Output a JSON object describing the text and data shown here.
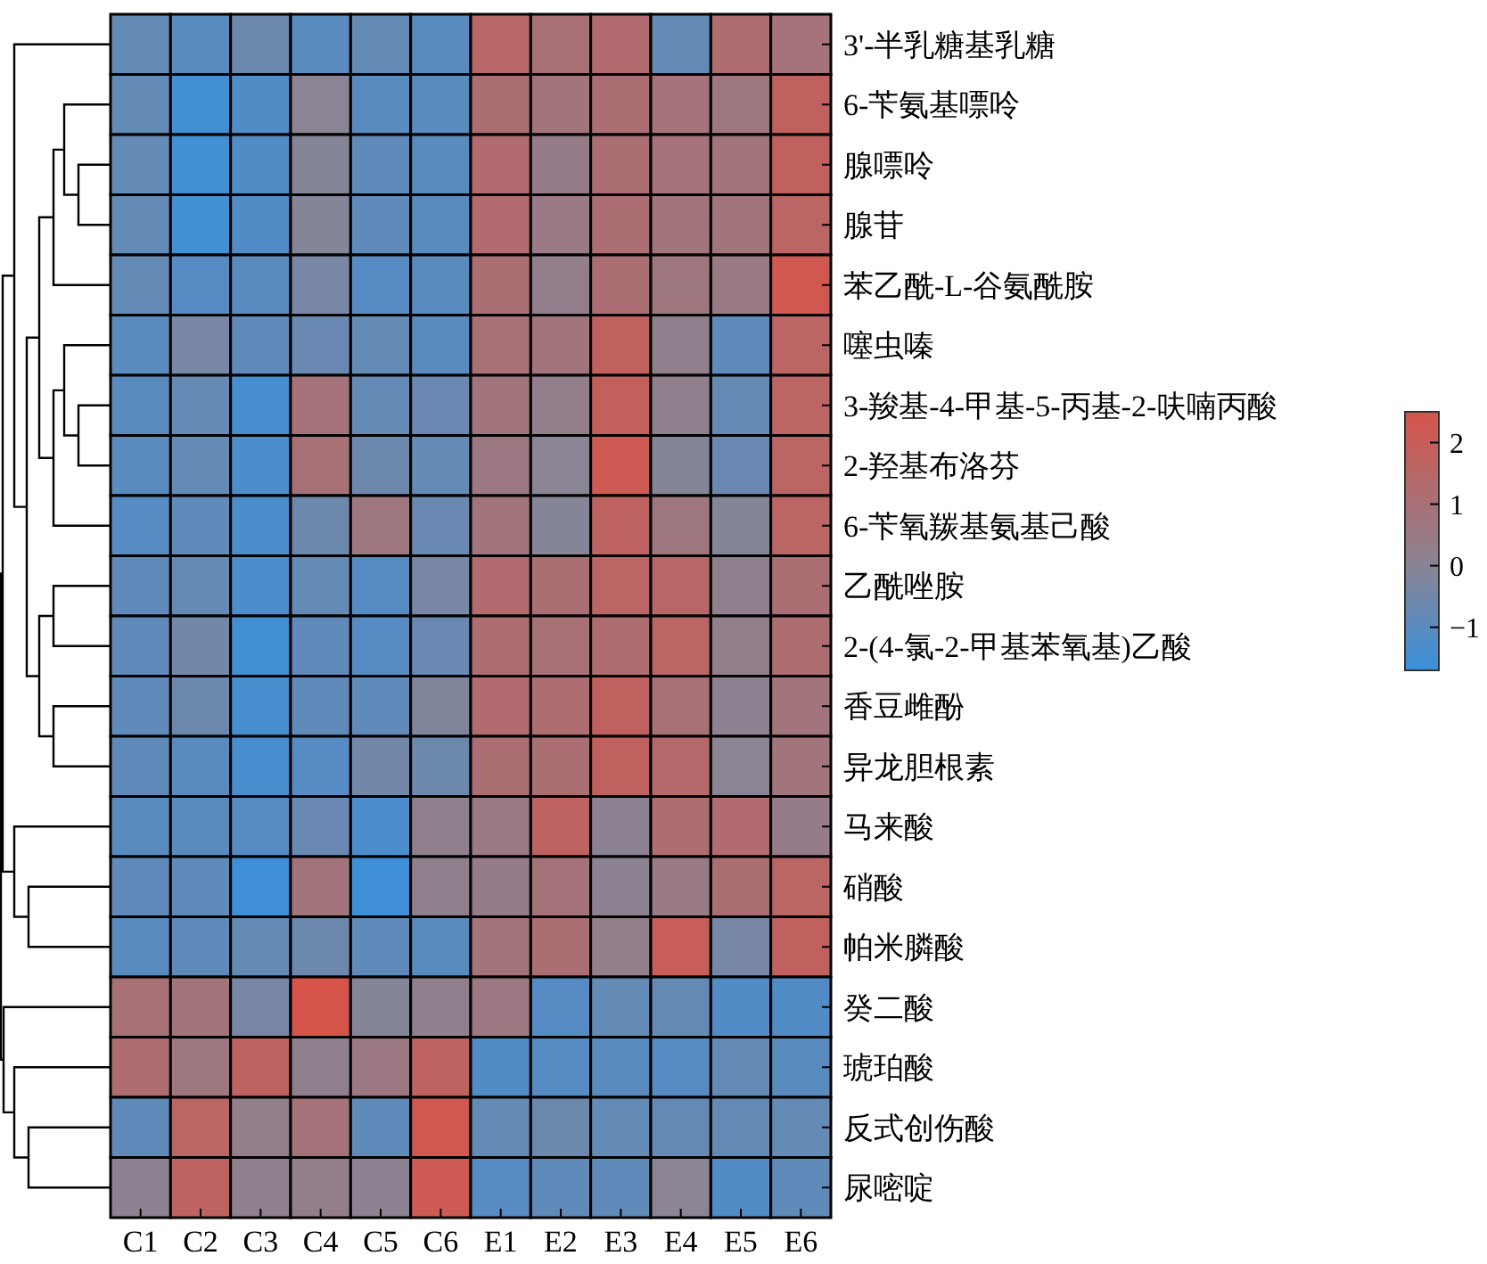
{
  "chart_data": {
    "type": "heatmap",
    "categories": [
      "C1",
      "C2",
      "C3",
      "C4",
      "C5",
      "C6",
      "E1",
      "E2",
      "E3",
      "E4",
      "E5",
      "E6"
    ],
    "y_categories": [
      "3'-半乳糖基乳糖",
      "6-苄氨基嘌呤",
      "腺嘌呤",
      "腺苷",
      "苯乙酰-L-谷氨酰胺",
      "噻虫嗪",
      "3-羧基-4-甲基-5-丙基-2-呋喃丙酸",
      "2-羟基布洛芬",
      "6-苄氧羰基氨基己酸",
      "乙酰唑胺",
      "2-(4-氯-2-甲基苯氧基)乙酸",
      "香豆雌酚",
      "异龙胆根素",
      "马来酸",
      "硝酸",
      "帕米膦酸",
      "癸二酸",
      "琥珀酸",
      "反式创伤酸",
      "尿嘧啶"
    ],
    "cells": [
      [
        -0.8,
        -1.0,
        -0.6,
        -1.0,
        -0.8,
        -1.0,
        1.5,
        1.0,
        1.3,
        -0.8,
        1.2,
        0.9
      ],
      [
        -0.8,
        -1.5,
        -1.2,
        0.0,
        -1.0,
        -1.0,
        1.1,
        0.8,
        1.1,
        0.9,
        0.7,
        1.8
      ],
      [
        -0.8,
        -1.5,
        -1.2,
        -0.1,
        -0.9,
        -1.0,
        1.3,
        0.4,
        1.1,
        0.9,
        0.8,
        1.8
      ],
      [
        -0.8,
        -1.5,
        -1.2,
        -0.1,
        -0.9,
        -1.0,
        1.3,
        0.5,
        1.1,
        0.8,
        0.8,
        1.6
      ],
      [
        -0.8,
        -1.1,
        -1.0,
        -0.4,
        -1.1,
        -1.0,
        1.1,
        0.3,
        1.1,
        0.7,
        0.5,
        2.3
      ],
      [
        -1.0,
        -0.4,
        -0.9,
        -0.7,
        -0.8,
        -1.0,
        1.0,
        0.8,
        1.8,
        0.2,
        -0.9,
        1.6
      ],
      [
        -1.0,
        -0.8,
        -1.4,
        0.9,
        -0.8,
        -0.7,
        0.8,
        0.3,
        1.9,
        0.2,
        -0.8,
        1.6
      ],
      [
        -1.0,
        -0.8,
        -1.3,
        1.0,
        -0.6,
        -0.8,
        0.6,
        0.0,
        2.2,
        -0.1,
        -0.7,
        1.6
      ],
      [
        -1.1,
        -0.9,
        -1.3,
        -0.6,
        0.7,
        -0.7,
        0.8,
        -0.1,
        1.7,
        0.7,
        -0.1,
        1.6
      ],
      [
        -0.9,
        -0.8,
        -1.3,
        -0.8,
        -1.1,
        -0.4,
        1.3,
        1.1,
        1.6,
        1.5,
        0.2,
        1.1
      ],
      [
        -0.9,
        -0.5,
        -1.5,
        -0.9,
        -1.1,
        -0.7,
        1.2,
        1.0,
        1.2,
        1.6,
        0.3,
        1.2
      ],
      [
        -0.9,
        -0.6,
        -1.4,
        -0.9,
        -0.9,
        -0.2,
        1.3,
        1.2,
        1.8,
        1.0,
        0.1,
        0.8
      ],
      [
        -0.9,
        -1.0,
        -1.4,
        -1.1,
        -0.5,
        -0.6,
        1.1,
        1.1,
        1.8,
        1.4,
        0.0,
        0.8
      ],
      [
        -1.0,
        -1.0,
        -1.1,
        -0.7,
        -1.3,
        0.2,
        0.5,
        1.7,
        0.1,
        1.2,
        1.3,
        0.4
      ],
      [
        -0.9,
        -0.9,
        -1.6,
        0.8,
        -1.6,
        0.2,
        0.4,
        0.9,
        0.1,
        0.5,
        1.1,
        1.6
      ],
      [
        -1.0,
        -0.9,
        -0.8,
        -0.6,
        -0.9,
        -1.0,
        0.8,
        1.1,
        0.3,
        2.0,
        -0.4,
        1.8
      ],
      [
        1.0,
        0.8,
        -0.4,
        2.5,
        -0.1,
        0.2,
        0.6,
        -1.1,
        -0.8,
        -0.8,
        -1.2,
        -1.2
      ],
      [
        1.2,
        0.7,
        1.7,
        0.2,
        0.6,
        1.7,
        -1.2,
        -1.1,
        -1.0,
        -1.1,
        -0.8,
        -1.0
      ],
      [
        -0.9,
        1.6,
        0.3,
        0.9,
        -0.9,
        2.3,
        -0.8,
        -0.6,
        -0.8,
        -0.8,
        -0.8,
        -0.8
      ],
      [
        0.1,
        1.7,
        0.2,
        0.3,
        0.1,
        2.2,
        -1.1,
        -0.9,
        -0.9,
        0.0,
        -1.2,
        -0.9
      ]
    ],
    "clim": [
      -1.7,
      2.5
    ],
    "cticks": [
      {
        "value": -1,
        "label": "−1"
      },
      0,
      1,
      2
    ]
  }
}
